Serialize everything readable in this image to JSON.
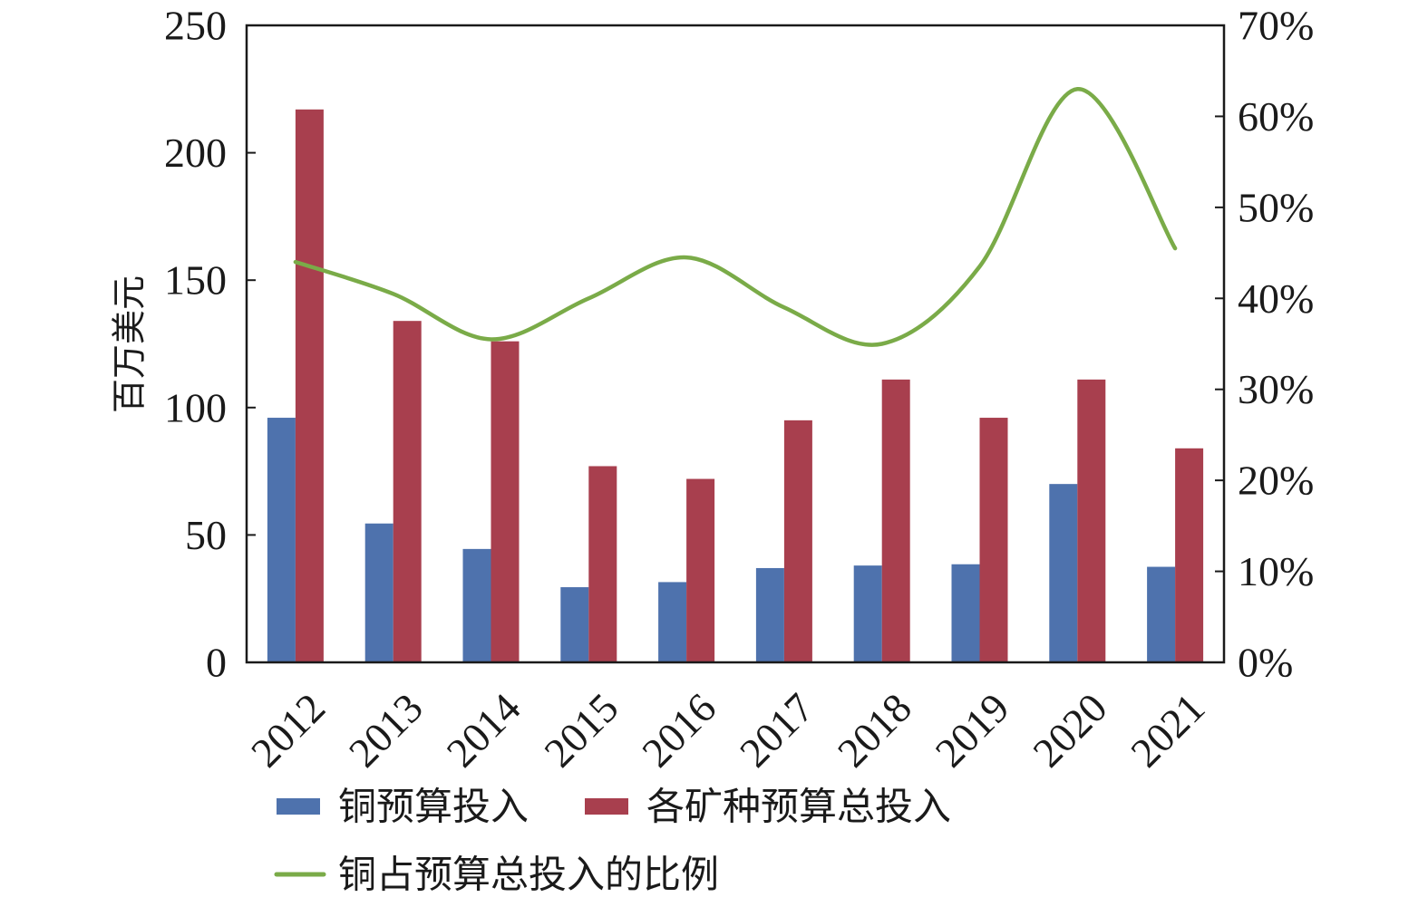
{
  "chart_data": {
    "type": "bar",
    "categories": [
      "2012",
      "2013",
      "2014",
      "2015",
      "2016",
      "2017",
      "2018",
      "2019",
      "2020",
      "2021"
    ],
    "series": [
      {
        "name": "铜预算投入",
        "type": "bar",
        "axis": "left",
        "color": "#4e72ad",
        "values": [
          96,
          54.5,
          44.5,
          29.5,
          31.5,
          37,
          38,
          38.5,
          70,
          37.5
        ]
      },
      {
        "name": "各矿种预算总投入",
        "type": "bar",
        "axis": "left",
        "color": "#a83f4e",
        "values": [
          217,
          134,
          126,
          77,
          72,
          95,
          111,
          96,
          111,
          84
        ]
      },
      {
        "name": "铜占预算总投入的比例",
        "type": "line",
        "axis": "right",
        "color": "#7aab48",
        "values": [
          44,
          40.5,
          35.5,
          40,
          44.5,
          39,
          35,
          43.5,
          63,
          45.5
        ]
      }
    ],
    "ylabel": "百万美元",
    "ylim": [
      0,
      250
    ],
    "yticks": [
      "0",
      "50",
      "100",
      "150",
      "200",
      "250"
    ],
    "y2lim": [
      0,
      70
    ],
    "y2ticks": [
      "0%",
      "10%",
      "20%",
      "30%",
      "40%",
      "50%",
      "60%",
      "70%"
    ],
    "grid": false,
    "legend_position": "bottom"
  }
}
